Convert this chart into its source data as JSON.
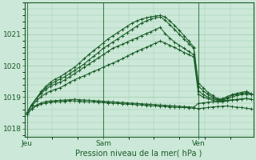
{
  "bg_color": "#cce8d8",
  "grid_color": "#99ccaa",
  "line_color": "#1a5c28",
  "xlabel": "Pression niveau de la mer( hPa )",
  "ylim": [
    1017.75,
    1022.0
  ],
  "yticks": [
    1018,
    1019,
    1020,
    1021
  ],
  "xtick_labels": [
    "Jeu",
    "Sam",
    "Ven"
  ],
  "xtick_positions": [
    0,
    16,
    36
  ],
  "total_points": 48,
  "series": [
    [
      1018.45,
      1018.62,
      1018.72,
      1018.78,
      1018.82,
      1018.84,
      1018.85,
      1018.86,
      1018.87,
      1018.88,
      1018.88,
      1018.87,
      1018.86,
      1018.85,
      1018.85,
      1018.84,
      1018.83,
      1018.82,
      1018.81,
      1018.8,
      1018.79,
      1018.78,
      1018.77,
      1018.76,
      1018.75,
      1018.74,
      1018.73,
      1018.72,
      1018.71,
      1018.7,
      1018.69,
      1018.68,
      1018.67,
      1018.67,
      1018.66,
      1018.65,
      1018.64,
      1018.65,
      1018.67,
      1018.69,
      1018.7,
      1018.71,
      1018.72,
      1018.7,
      1018.68,
      1018.67,
      1018.65,
      1018.63
    ],
    [
      1018.45,
      1018.64,
      1018.75,
      1018.82,
      1018.86,
      1018.88,
      1018.89,
      1018.9,
      1018.91,
      1018.92,
      1018.93,
      1018.92,
      1018.91,
      1018.9,
      1018.89,
      1018.88,
      1018.87,
      1018.86,
      1018.85,
      1018.84,
      1018.83,
      1018.82,
      1018.81,
      1018.8,
      1018.79,
      1018.78,
      1018.77,
      1018.76,
      1018.75,
      1018.74,
      1018.73,
      1018.72,
      1018.71,
      1018.7,
      1018.69,
      1018.68,
      1018.8,
      1018.82,
      1018.84,
      1018.85,
      1018.86,
      1018.88,
      1018.9,
      1018.92,
      1018.93,
      1018.94,
      1018.95,
      1018.93
    ],
    [
      1018.5,
      1018.72,
      1018.88,
      1019.02,
      1019.12,
      1019.2,
      1019.25,
      1019.3,
      1019.38,
      1019.48,
      1019.55,
      1019.62,
      1019.68,
      1019.75,
      1019.82,
      1019.88,
      1019.95,
      1020.02,
      1020.08,
      1020.15,
      1020.22,
      1020.3,
      1020.38,
      1020.45,
      1020.52,
      1020.58,
      1020.65,
      1020.72,
      1020.78,
      1020.72,
      1020.65,
      1020.58,
      1020.5,
      1020.42,
      1020.35,
      1020.28,
      1019.1,
      1019.0,
      1018.95,
      1018.9,
      1018.85,
      1018.85,
      1018.88,
      1018.9,
      1018.92,
      1018.94,
      1018.96,
      1018.94
    ],
    [
      1018.5,
      1018.75,
      1018.95,
      1019.12,
      1019.25,
      1019.35,
      1019.42,
      1019.48,
      1019.55,
      1019.65,
      1019.75,
      1019.85,
      1019.95,
      1020.05,
      1020.15,
      1020.25,
      1020.35,
      1020.45,
      1020.55,
      1020.62,
      1020.68,
      1020.75,
      1020.82,
      1020.88,
      1020.95,
      1021.02,
      1021.08,
      1021.15,
      1021.22,
      1021.02,
      1020.88,
      1020.75,
      1020.65,
      1020.55,
      1020.45,
      1020.35,
      1019.2,
      1019.08,
      1019.0,
      1018.95,
      1018.9,
      1018.9,
      1018.95,
      1019.0,
      1019.05,
      1019.08,
      1019.1,
      1019.08
    ],
    [
      1018.5,
      1018.76,
      1018.96,
      1019.15,
      1019.3,
      1019.42,
      1019.5,
      1019.58,
      1019.65,
      1019.75,
      1019.85,
      1019.95,
      1020.05,
      1020.18,
      1020.3,
      1020.42,
      1020.55,
      1020.65,
      1020.75,
      1020.85,
      1020.95,
      1021.05,
      1021.15,
      1021.25,
      1021.35,
      1021.42,
      1021.48,
      1021.52,
      1021.55,
      1021.45,
      1021.3,
      1021.15,
      1021.0,
      1020.85,
      1020.7,
      1020.55,
      1019.35,
      1019.2,
      1019.08,
      1019.0,
      1018.92,
      1018.92,
      1018.98,
      1019.05,
      1019.1,
      1019.12,
      1019.15,
      1019.1
    ],
    [
      1018.5,
      1018.76,
      1018.97,
      1019.18,
      1019.35,
      1019.48,
      1019.58,
      1019.65,
      1019.75,
      1019.85,
      1019.95,
      1020.08,
      1020.22,
      1020.35,
      1020.48,
      1020.6,
      1020.72,
      1020.85,
      1020.95,
      1021.05,
      1021.15,
      1021.25,
      1021.35,
      1021.42,
      1021.48,
      1021.52,
      1021.55,
      1021.58,
      1021.6,
      1021.55,
      1021.42,
      1021.28,
      1021.12,
      1020.95,
      1020.78,
      1020.6,
      1019.45,
      1019.3,
      1019.15,
      1019.05,
      1018.95,
      1018.95,
      1019.02,
      1019.08,
      1019.12,
      1019.15,
      1019.18,
      1019.12
    ]
  ]
}
